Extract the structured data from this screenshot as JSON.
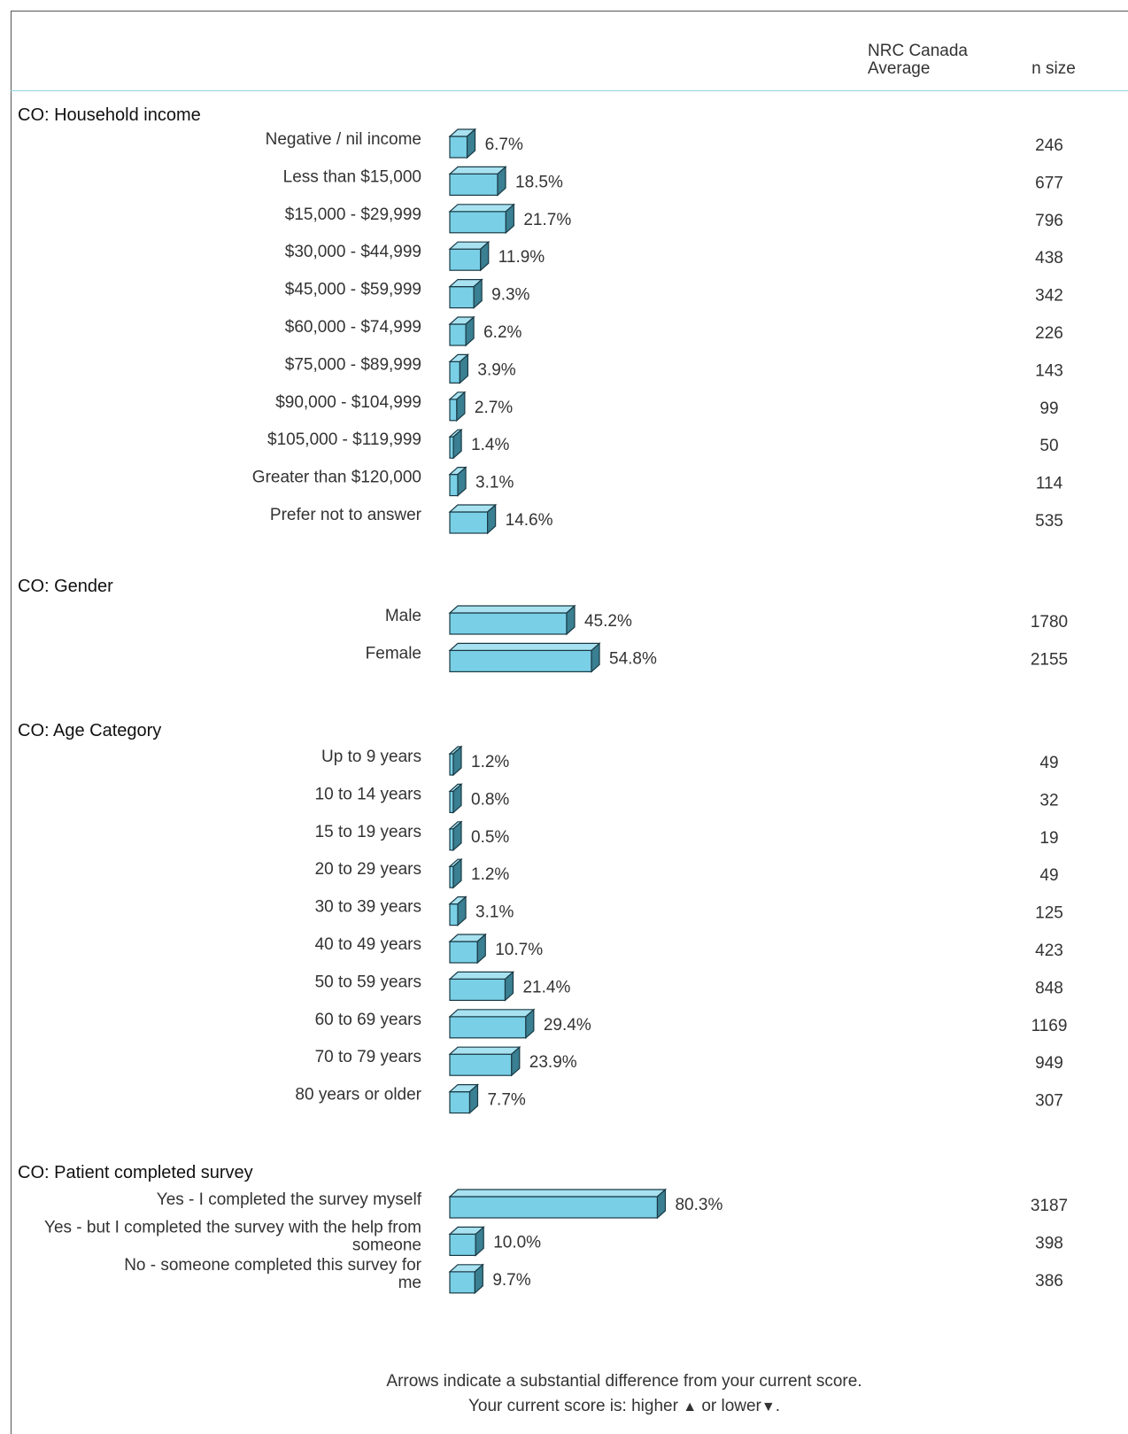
{
  "header": {
    "avg_line1": "NRC Canada",
    "avg_line2": "Average",
    "n_size": "n size"
  },
  "colors": {
    "bar_front": "#79cfe6",
    "bar_top": "#a8e2f1",
    "bar_side": "#3a7f92",
    "bar_stroke": "#1a3a44",
    "rule": "#8fd3df"
  },
  "chart_data": {
    "type": "bar",
    "orientation": "horizontal",
    "style": "3d",
    "groups": [
      {
        "title": "CO: Household income",
        "rows": [
          {
            "label": "Negative / nil income",
            "value": 6.7,
            "value_label": "6.7%",
            "n": "246"
          },
          {
            "label": "Less than $15,000",
            "value": 18.5,
            "value_label": "18.5%",
            "n": "677"
          },
          {
            "label": "$15,000 - $29,999",
            "value": 21.7,
            "value_label": "21.7%",
            "n": "796"
          },
          {
            "label": "$30,000 - $44,999",
            "value": 11.9,
            "value_label": "11.9%",
            "n": "438"
          },
          {
            "label": "$45,000 - $59,999",
            "value": 9.3,
            "value_label": "9.3%",
            "n": "342"
          },
          {
            "label": "$60,000 - $74,999",
            "value": 6.2,
            "value_label": "6.2%",
            "n": "226"
          },
          {
            "label": "$75,000 - $89,999",
            "value": 3.9,
            "value_label": "3.9%",
            "n": "143"
          },
          {
            "label": "$90,000 - $104,999",
            "value": 2.7,
            "value_label": "2.7%",
            "n": "99"
          },
          {
            "label": "$105,000 - $119,999",
            "value": 1.4,
            "value_label": "1.4%",
            "n": "50"
          },
          {
            "label": "Greater than $120,000",
            "value": 3.1,
            "value_label": "3.1%",
            "n": "114"
          },
          {
            "label": "Prefer not to answer",
            "value": 14.6,
            "value_label": "14.6%",
            "n": "535"
          }
        ]
      },
      {
        "title": "CO: Gender",
        "rows": [
          {
            "label": "Male",
            "value": 45.2,
            "value_label": "45.2%",
            "n": "1780"
          },
          {
            "label": "Female",
            "value": 54.8,
            "value_label": "54.8%",
            "n": "2155"
          }
        ]
      },
      {
        "title": "CO: Age Category",
        "rows": [
          {
            "label": "Up to 9 years",
            "value": 1.2,
            "value_label": "1.2%",
            "n": "49"
          },
          {
            "label": "10 to 14 years",
            "value": 0.8,
            "value_label": "0.8%",
            "n": "32"
          },
          {
            "label": "15 to 19 years",
            "value": 0.5,
            "value_label": "0.5%",
            "n": "19"
          },
          {
            "label": "20 to 29 years",
            "value": 1.2,
            "value_label": "1.2%",
            "n": "49"
          },
          {
            "label": "30 to 39 years",
            "value": 3.1,
            "value_label": "3.1%",
            "n": "125"
          },
          {
            "label": "40 to 49 years",
            "value": 10.7,
            "value_label": "10.7%",
            "n": "423"
          },
          {
            "label": "50 to 59 years",
            "value": 21.4,
            "value_label": "21.4%",
            "n": "848"
          },
          {
            "label": "60 to 69 years",
            "value": 29.4,
            "value_label": "29.4%",
            "n": "1169"
          },
          {
            "label": "70 to 79 years",
            "value": 23.9,
            "value_label": "23.9%",
            "n": "949"
          },
          {
            "label": "80 years or older",
            "value": 7.7,
            "value_label": "7.7%",
            "n": "307"
          }
        ]
      },
      {
        "title": "CO: Patient completed survey",
        "rows": [
          {
            "label": "Yes - I completed the survey myself",
            "value": 80.3,
            "value_label": "80.3%",
            "n": "3187"
          },
          {
            "label": "Yes - but I completed the survey with the help from someone",
            "value": 10.0,
            "value_label": "10.0%",
            "n": "398"
          },
          {
            "label": "No - someone completed this survey for me",
            "value": 9.7,
            "value_label": "9.7%",
            "n": "386"
          }
        ]
      }
    ]
  },
  "footnote": {
    "line1": "Arrows indicate a substantial difference from your current score.",
    "line2_prefix": "Your current score is: higher",
    "up_arrow": "▲",
    "line2_middle": "or lower",
    "down_arrow": "▼",
    "line2_suffix": "."
  }
}
